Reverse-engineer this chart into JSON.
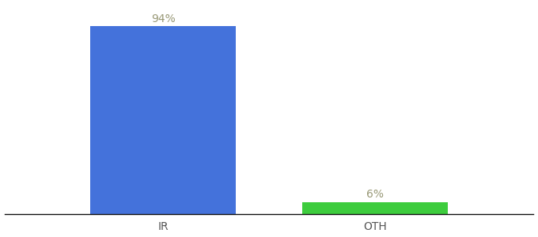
{
  "categories": [
    "IR",
    "OTH"
  ],
  "values": [
    94,
    6
  ],
  "bar_colors": [
    "#4472db",
    "#3dcc3d"
  ],
  "label_texts": [
    "94%",
    "6%"
  ],
  "background_color": "#ffffff",
  "ylim": [
    0,
    105
  ],
  "bar_width": 0.55,
  "label_fontsize": 10,
  "tick_fontsize": 10,
  "label_color": "#999977",
  "xlim": [
    -0.3,
    1.7
  ]
}
